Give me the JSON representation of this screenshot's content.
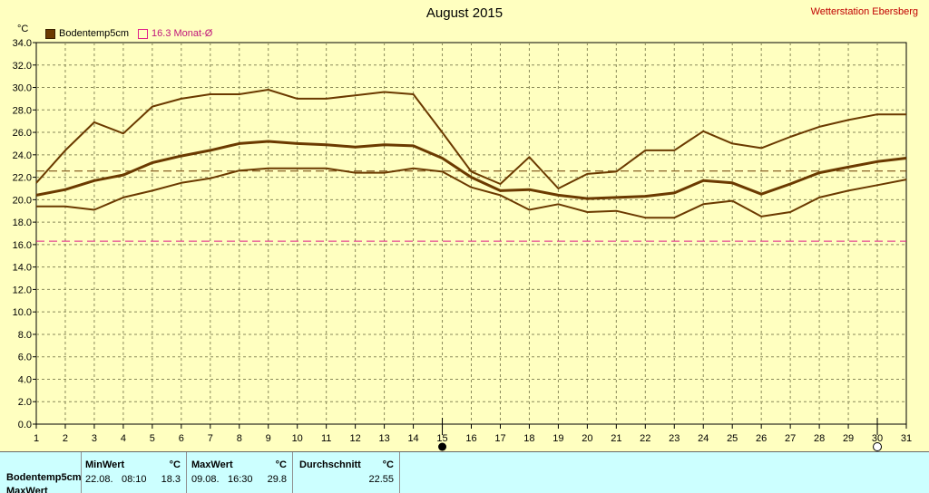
{
  "title": "August 2015",
  "station": "Wetterstation Ebersberg",
  "unit": "°C",
  "legend": {
    "series_label": "Bodentemp5cm",
    "avg_label": "16.3 Monat-Ø"
  },
  "colors": {
    "background": "#FFFFC0",
    "series": "#6B3A00",
    "avg_line": "#E0208A",
    "grid": "#8A8A5A",
    "table": "#CCFFFF"
  },
  "chart_data": {
    "type": "line",
    "x": [
      1,
      2,
      3,
      4,
      5,
      6,
      7,
      8,
      9,
      10,
      11,
      12,
      13,
      14,
      15,
      16,
      17,
      18,
      19,
      20,
      21,
      22,
      23,
      24,
      25,
      26,
      27,
      28,
      29,
      30,
      31
    ],
    "xlim": [
      1,
      31
    ],
    "ylim": [
      0,
      34
    ],
    "ytick_step": 2,
    "yticks": [
      "0.0",
      "2.0",
      "4.0",
      "6.0",
      "8.0",
      "10.0",
      "12.0",
      "14.0",
      "16.0",
      "18.0",
      "20.0",
      "22.0",
      "24.0",
      "26.0",
      "28.0",
      "30.0",
      "32.0",
      "34.0"
    ],
    "xticks": [
      "1",
      "2",
      "3",
      "4",
      "5",
      "6",
      "7",
      "8",
      "9",
      "10",
      "11",
      "12",
      "13",
      "14",
      "15",
      "16",
      "17",
      "18",
      "19",
      "20",
      "21",
      "22",
      "23",
      "24",
      "25",
      "26",
      "27",
      "28",
      "29",
      "30",
      "31"
    ],
    "grid": true,
    "series": [
      {
        "name": "Bodentemp5cm",
        "role": "max",
        "values": [
          21.5,
          24.4,
          26.9,
          25.9,
          28.3,
          29.0,
          29.4,
          29.4,
          29.8,
          29.0,
          29.0,
          29.3,
          29.6,
          29.4,
          26.0,
          22.5,
          21.4,
          23.8,
          21.0,
          22.3,
          22.5,
          24.4,
          24.4,
          26.1,
          25.0,
          24.6,
          25.6,
          26.5,
          27.1,
          27.6,
          27.6
        ]
      },
      {
        "role": "mean",
        "values": [
          20.4,
          20.9,
          21.7,
          22.2,
          23.3,
          23.9,
          24.4,
          25.0,
          25.2,
          25.0,
          24.9,
          24.7,
          24.9,
          24.8,
          23.7,
          22.0,
          20.8,
          20.9,
          20.4,
          20.1,
          20.2,
          20.3,
          20.6,
          21.7,
          21.5,
          20.5,
          21.4,
          22.4,
          22.9,
          23.4,
          23.7
        ]
      },
      {
        "role": "min",
        "values": [
          19.4,
          19.4,
          19.1,
          20.2,
          20.8,
          21.5,
          21.9,
          22.6,
          22.8,
          22.8,
          22.8,
          22.4,
          22.4,
          22.8,
          22.5,
          21.1,
          20.4,
          19.1,
          19.6,
          18.9,
          19.0,
          18.4,
          18.4,
          19.6,
          19.9,
          18.5,
          18.9,
          20.2,
          20.8,
          21.3,
          21.8
        ]
      }
    ],
    "avg_line": 22.55,
    "month_avg_line": 16.3,
    "markers": [
      {
        "day": 15,
        "type": "new-moon"
      },
      {
        "day": 30,
        "type": "full-moon"
      }
    ]
  },
  "table": {
    "row_label": "Bodentemp5cm",
    "row2_label": "MaxWert",
    "min": {
      "header": "MinWert",
      "unit": "°C",
      "date": "22.08.",
      "time": "08:10",
      "value": "18.3"
    },
    "max": {
      "header": "MaxWert",
      "unit": "°C",
      "date": "09.08.",
      "time": "16:30",
      "value": "29.8"
    },
    "avg": {
      "header": "Durchschnitt",
      "unit": "°C",
      "value": "22.55"
    }
  }
}
